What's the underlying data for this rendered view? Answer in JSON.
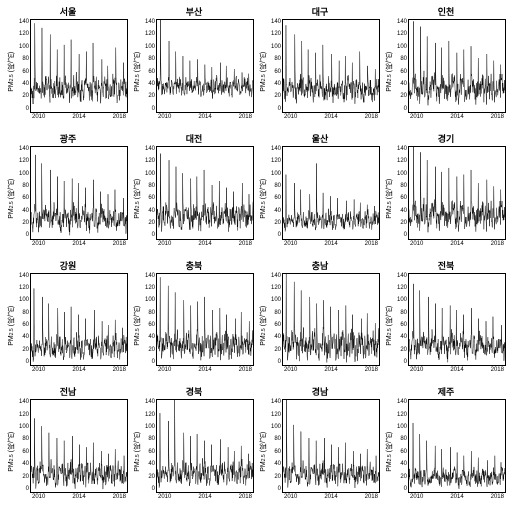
{
  "global": {
    "type": "line-timeseries-grid",
    "rows": 4,
    "cols": 4,
    "background_color": "#ffffff",
    "line_color": "#000000",
    "axis_color": "#000000",
    "title_fontsize_pt": 9,
    "tick_fontsize_pt": 6,
    "ylabel_fontsize_pt": 7,
    "ylabel": "PM2.5 (㎍/㎥)",
    "x_ticks": [
      "2010",
      "2014",
      "2018"
    ],
    "y_ticks": [
      "0",
      "20",
      "40",
      "60",
      "80",
      "100",
      "120",
      "140"
    ],
    "ylim": [
      0,
      140
    ],
    "xlim": [
      2009,
      2020
    ],
    "n_points": 360
  },
  "panels": [
    {
      "title": "서울",
      "base": 35,
      "noise": 14,
      "spikes": [
        135,
        128,
        118,
        95,
        102,
        110,
        88,
        92,
        105,
        80,
        70,
        98,
        75
      ]
    },
    {
      "title": "부산",
      "base": 38,
      "noise": 10,
      "spikes": [
        140,
        108,
        92,
        85,
        78,
        80,
        72,
        68,
        75,
        70,
        65,
        60,
        58
      ]
    },
    {
      "title": "대구",
      "base": 34,
      "noise": 13,
      "spikes": [
        132,
        118,
        108,
        95,
        90,
        102,
        88,
        78,
        85,
        75,
        92,
        70,
        65
      ]
    },
    {
      "title": "인천",
      "base": 36,
      "noise": 15,
      "spikes": [
        138,
        130,
        115,
        105,
        98,
        108,
        90,
        95,
        100,
        82,
        88,
        78,
        72
      ]
    },
    {
      "title": "광주",
      "base": 30,
      "noise": 14,
      "spikes": [
        128,
        115,
        105,
        95,
        88,
        92,
        85,
        78,
        90,
        72,
        68,
        75,
        62
      ]
    },
    {
      "title": "대전",
      "base": 33,
      "noise": 14,
      "spikes": [
        130,
        120,
        110,
        100,
        92,
        95,
        105,
        82,
        88,
        78,
        72,
        85,
        68
      ]
    },
    {
      "title": "울산",
      "base": 28,
      "noise": 10,
      "spikes": [
        98,
        85,
        75,
        68,
        115,
        70,
        65,
        62,
        58,
        60,
        55,
        52,
        50
      ]
    },
    {
      "title": "경기",
      "base": 36,
      "noise": 15,
      "spikes": [
        140,
        132,
        120,
        110,
        102,
        108,
        95,
        98,
        105,
        85,
        90,
        80,
        75
      ]
    },
    {
      "title": "강원",
      "base": 28,
      "noise": 13,
      "spikes": [
        118,
        105,
        95,
        88,
        82,
        90,
        78,
        72,
        85,
        68,
        62,
        70,
        58
      ]
    },
    {
      "title": "충북",
      "base": 32,
      "noise": 14,
      "spikes": [
        135,
        122,
        112,
        100,
        92,
        98,
        105,
        85,
        88,
        78,
        72,
        82,
        68
      ]
    },
    {
      "title": "충남",
      "base": 32,
      "noise": 16,
      "spikes": [
        142,
        128,
        115,
        105,
        95,
        100,
        90,
        85,
        92,
        78,
        72,
        80,
        65
      ]
    },
    {
      "title": "전북",
      "base": 30,
      "noise": 14,
      "spikes": [
        125,
        115,
        105,
        95,
        88,
        92,
        85,
        78,
        88,
        72,
        68,
        75,
        62
      ]
    },
    {
      "title": "전남",
      "base": 26,
      "noise": 13,
      "spikes": [
        112,
        100,
        90,
        82,
        78,
        85,
        72,
        68,
        75,
        62,
        58,
        65,
        55
      ]
    },
    {
      "title": "경북",
      "base": 28,
      "noise": 13,
      "spikes": [
        120,
        108,
        142,
        90,
        85,
        88,
        78,
        72,
        80,
        68,
        62,
        70,
        58
      ]
    },
    {
      "title": "경남",
      "base": 26,
      "noise": 12,
      "spikes": [
        140,
        102,
        92,
        82,
        78,
        82,
        72,
        68,
        75,
        62,
        58,
        65,
        55
      ]
    },
    {
      "title": "제주",
      "base": 22,
      "noise": 10,
      "spikes": [
        105,
        88,
        78,
        70,
        65,
        68,
        60,
        55,
        62,
        52,
        48,
        55,
        45
      ]
    }
  ]
}
